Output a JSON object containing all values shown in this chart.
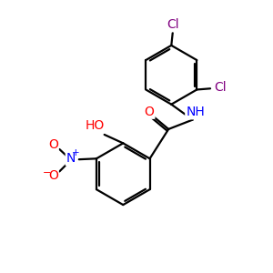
{
  "background_color": "#ffffff",
  "atom_colors": {
    "C": "#000000",
    "N": "#0000ff",
    "O": "#ff0000",
    "Cl": "#800080",
    "H": "#000000"
  },
  "bond_color": "#000000",
  "bond_width": 1.6,
  "figsize": [
    3.0,
    3.0
  ],
  "dpi": 100,
  "xlim": [
    0,
    10
  ],
  "ylim": [
    0,
    10
  ]
}
